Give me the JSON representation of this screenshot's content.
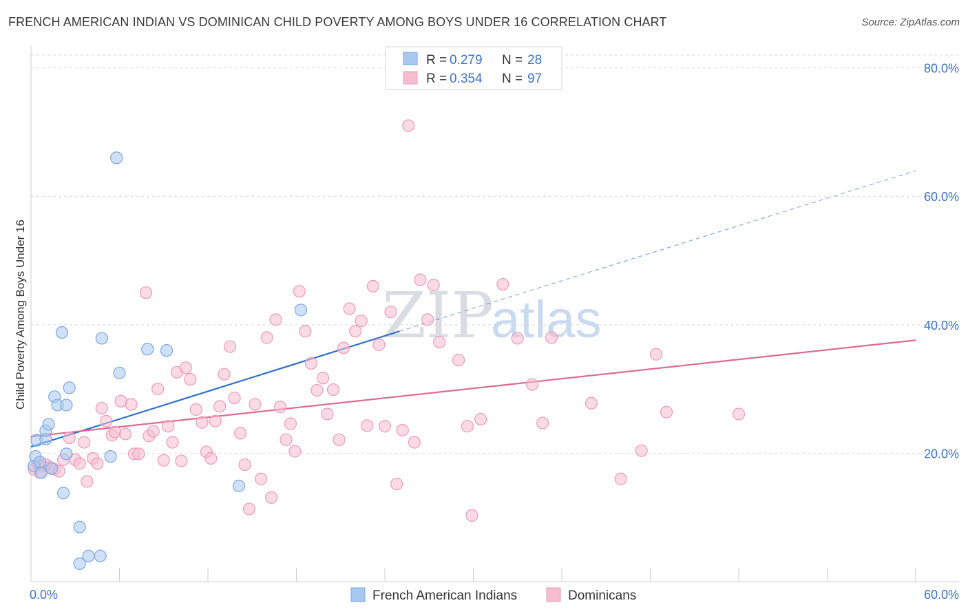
{
  "title": "FRENCH AMERICAN INDIAN VS DOMINICAN CHILD POVERTY AMONG BOYS UNDER 16 CORRELATION CHART",
  "source": "Source: ZipAtlas.com",
  "watermark": {
    "zip": "ZIP",
    "atlas": "atlas"
  },
  "colors": {
    "blue_fill": "#a9c8f0",
    "blue_stroke": "#7aa7e0",
    "blue_line": "#2f6fca",
    "pink_fill": "#f6bcd0",
    "pink_stroke": "#ee9bb8",
    "pink_line": "#e06893",
    "tick_label": "#3d72c4",
    "grid": "#d8d8d8"
  },
  "legend": {
    "rows": [
      {
        "r_label": "R =",
        "r_value": "0.279",
        "n_label": "N =",
        "n_value": "28",
        "color": "#a9c8f0"
      },
      {
        "r_label": "R =",
        "r_value": "0.354",
        "n_label": "N =",
        "n_value": "97",
        "color": "#f6bcd0"
      }
    ]
  },
  "chart_data": {
    "type": "scatter",
    "title": "FRENCH AMERICAN INDIAN VS DOMINICAN CHILD POVERTY AMONG BOYS UNDER 16 CORRELATION CHART",
    "xlabel": "",
    "ylabel": "Child Poverty Among Boys Under 16",
    "xlim": [
      0,
      60
    ],
    "ylim": [
      0,
      82
    ],
    "x_ticks": [
      0,
      60
    ],
    "x_tick_labels": [
      "0.0%",
      "60.0%"
    ],
    "y_ticks": [
      20,
      40,
      60,
      80
    ],
    "y_tick_labels": [
      "20.0%",
      "40.0%",
      "60.0%",
      "80.0%"
    ],
    "grid": true,
    "legend_position": "top-center",
    "series": [
      {
        "name": "French American Indians",
        "color": "#a9c8f0",
        "points": [
          [
            0.2,
            18.0
          ],
          [
            0.4,
            22.0
          ],
          [
            0.7,
            17.0
          ],
          [
            1.0,
            22.2
          ],
          [
            1.0,
            23.5
          ],
          [
            1.2,
            24.5
          ],
          [
            1.4,
            17.6
          ],
          [
            1.6,
            28.8
          ],
          [
            1.8,
            27.5
          ],
          [
            2.1,
            38.8
          ],
          [
            2.2,
            13.8
          ],
          [
            2.4,
            27.5
          ],
          [
            2.4,
            19.9
          ],
          [
            2.6,
            30.2
          ],
          [
            3.3,
            2.8
          ],
          [
            3.3,
            8.5
          ],
          [
            3.9,
            4.0
          ],
          [
            4.7,
            4.0
          ],
          [
            4.8,
            37.9
          ],
          [
            5.4,
            19.5
          ],
          [
            5.8,
            66.0
          ],
          [
            6.0,
            32.5
          ],
          [
            7.9,
            36.2
          ],
          [
            9.2,
            36.0
          ],
          [
            14.1,
            14.9
          ],
          [
            18.3,
            42.3
          ],
          [
            0.3,
            19.5
          ],
          [
            0.6,
            18.6
          ]
        ],
        "trend": {
          "x0": 0,
          "y0": 21.0,
          "x1": 25,
          "y1": 39.0,
          "dashed_to_x": 60,
          "dashed_to_y": 64.0
        }
      },
      {
        "name": "Dominicans",
        "color": "#f6bcd0",
        "points": [
          [
            0.2,
            17.5
          ],
          [
            0.5,
            18.3
          ],
          [
            0.8,
            18.0
          ],
          [
            1.0,
            18.2
          ],
          [
            1.3,
            17.8
          ],
          [
            1.6,
            17.5
          ],
          [
            1.9,
            17.2
          ],
          [
            2.2,
            19.0
          ],
          [
            2.6,
            22.4
          ],
          [
            3.0,
            19.0
          ],
          [
            3.3,
            18.4
          ],
          [
            3.6,
            21.7
          ],
          [
            3.8,
            15.6
          ],
          [
            4.2,
            19.2
          ],
          [
            4.5,
            18.4
          ],
          [
            4.8,
            27.0
          ],
          [
            5.1,
            25.0
          ],
          [
            5.5,
            22.8
          ],
          [
            5.7,
            23.3
          ],
          [
            6.1,
            28.1
          ],
          [
            6.4,
            23.0
          ],
          [
            6.8,
            27.6
          ],
          [
            7.0,
            19.9
          ],
          [
            7.3,
            19.9
          ],
          [
            7.8,
            45.0
          ],
          [
            8.0,
            22.7
          ],
          [
            8.3,
            23.4
          ],
          [
            8.6,
            30.0
          ],
          [
            9.0,
            18.9
          ],
          [
            9.3,
            24.2
          ],
          [
            9.6,
            21.7
          ],
          [
            9.9,
            32.6
          ],
          [
            10.2,
            18.8
          ],
          [
            10.5,
            33.3
          ],
          [
            10.8,
            31.5
          ],
          [
            11.2,
            26.8
          ],
          [
            11.6,
            24.8
          ],
          [
            11.9,
            20.2
          ],
          [
            12.2,
            19.2
          ],
          [
            12.5,
            25.0
          ],
          [
            12.8,
            27.3
          ],
          [
            13.1,
            32.3
          ],
          [
            13.5,
            36.6
          ],
          [
            13.8,
            28.6
          ],
          [
            14.2,
            23.1
          ],
          [
            14.5,
            18.2
          ],
          [
            14.8,
            11.3
          ],
          [
            15.2,
            27.6
          ],
          [
            15.6,
            16.0
          ],
          [
            16.0,
            38.0
          ],
          [
            16.3,
            13.1
          ],
          [
            16.6,
            40.8
          ],
          [
            16.9,
            27.2
          ],
          [
            17.3,
            22.1
          ],
          [
            17.6,
            24.6
          ],
          [
            17.9,
            20.3
          ],
          [
            18.2,
            45.2
          ],
          [
            18.6,
            39.0
          ],
          [
            19.0,
            34.0
          ],
          [
            19.4,
            29.8
          ],
          [
            19.8,
            31.7
          ],
          [
            20.1,
            26.1
          ],
          [
            20.5,
            29.9
          ],
          [
            20.9,
            22.1
          ],
          [
            21.2,
            36.4
          ],
          [
            21.6,
            42.5
          ],
          [
            22.0,
            39.0
          ],
          [
            22.4,
            40.6
          ],
          [
            22.8,
            24.3
          ],
          [
            23.2,
            46.0
          ],
          [
            23.6,
            36.9
          ],
          [
            24.0,
            24.2
          ],
          [
            24.4,
            42.0
          ],
          [
            24.8,
            15.2
          ],
          [
            25.2,
            23.6
          ],
          [
            25.6,
            71.0
          ],
          [
            26.0,
            21.7
          ],
          [
            26.4,
            47.0
          ],
          [
            26.9,
            40.8
          ],
          [
            27.3,
            46.2
          ],
          [
            27.7,
            37.3
          ],
          [
            29.0,
            34.5
          ],
          [
            29.6,
            24.2
          ],
          [
            29.9,
            10.3
          ],
          [
            30.5,
            25.3
          ],
          [
            32.0,
            46.3
          ],
          [
            33.0,
            37.9
          ],
          [
            34.0,
            30.7
          ],
          [
            34.7,
            24.7
          ],
          [
            35.3,
            38.0
          ],
          [
            38.0,
            27.8
          ],
          [
            40.0,
            16.0
          ],
          [
            41.4,
            20.4
          ],
          [
            42.4,
            35.4
          ],
          [
            43.1,
            26.4
          ],
          [
            48.0,
            26.1
          ],
          [
            0.6,
            17.0
          ]
        ],
        "trend": {
          "x0": 0,
          "y0": 22.6,
          "x1": 60,
          "y1": 37.6
        }
      }
    ]
  }
}
